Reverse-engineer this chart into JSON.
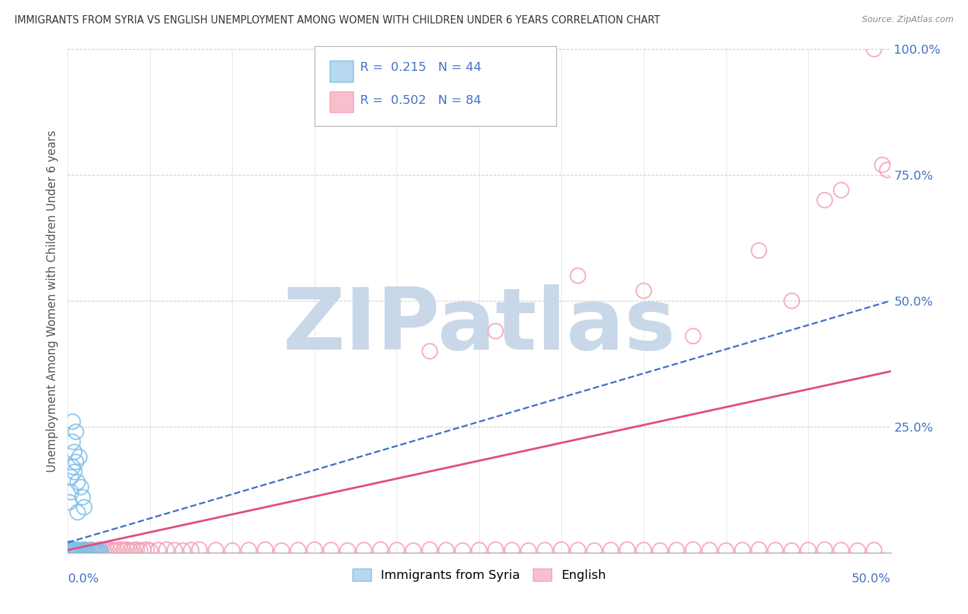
{
  "title": "IMMIGRANTS FROM SYRIA VS ENGLISH UNEMPLOYMENT AMONG WOMEN WITH CHILDREN UNDER 6 YEARS CORRELATION CHART",
  "source": "Source: ZipAtlas.com",
  "ylabel": "Unemployment Among Women with Children Under 6 years",
  "xlim": [
    0,
    0.5
  ],
  "ylim": [
    0,
    1.0
  ],
  "yticks": [
    0.0,
    0.25,
    0.5,
    0.75,
    1.0
  ],
  "ytick_labels": [
    "",
    "25.0%",
    "50.0%",
    "75.0%",
    "100.0%"
  ],
  "blue_color": "#7fbfea",
  "pink_color": "#f4a0b5",
  "blue_line_color": "#4472c4",
  "pink_line_color": "#e05080",
  "blue_trend": [
    0.0,
    0.02,
    0.5,
    0.5
  ],
  "pink_trend": [
    0.0,
    0.005,
    0.5,
    0.36
  ],
  "blue_scatter": [
    [
      0.001,
      0.005
    ],
    [
      0.001,
      0.008
    ],
    [
      0.002,
      0.003
    ],
    [
      0.002,
      0.006
    ],
    [
      0.003,
      0.004
    ],
    [
      0.003,
      0.007
    ],
    [
      0.004,
      0.005
    ],
    [
      0.004,
      0.003
    ],
    [
      0.005,
      0.006
    ],
    [
      0.005,
      0.004
    ],
    [
      0.006,
      0.003
    ],
    [
      0.006,
      0.005
    ],
    [
      0.007,
      0.004
    ],
    [
      0.007,
      0.002
    ],
    [
      0.008,
      0.003
    ],
    [
      0.009,
      0.005
    ],
    [
      0.01,
      0.004
    ],
    [
      0.01,
      0.006
    ],
    [
      0.011,
      0.003
    ],
    [
      0.012,
      0.004
    ],
    [
      0.013,
      0.002
    ],
    [
      0.014,
      0.003
    ],
    [
      0.015,
      0.004
    ],
    [
      0.016,
      0.002
    ],
    [
      0.017,
      0.003
    ],
    [
      0.018,
      0.002
    ],
    [
      0.019,
      0.003
    ],
    [
      0.02,
      0.002
    ],
    [
      0.003,
      0.17
    ],
    [
      0.004,
      0.2
    ],
    [
      0.005,
      0.18
    ],
    [
      0.003,
      0.22
    ],
    [
      0.004,
      0.16
    ],
    [
      0.006,
      0.14
    ],
    [
      0.007,
      0.19
    ],
    [
      0.005,
      0.24
    ],
    [
      0.002,
      0.15
    ],
    [
      0.008,
      0.13
    ],
    [
      0.002,
      0.12
    ],
    [
      0.001,
      0.1
    ],
    [
      0.009,
      0.11
    ],
    [
      0.01,
      0.09
    ],
    [
      0.003,
      0.26
    ],
    [
      0.006,
      0.08
    ]
  ],
  "pink_scatter": [
    [
      0.002,
      0.005
    ],
    [
      0.004,
      0.006
    ],
    [
      0.006,
      0.004
    ],
    [
      0.008,
      0.005
    ],
    [
      0.01,
      0.003
    ],
    [
      0.012,
      0.005
    ],
    [
      0.014,
      0.006
    ],
    [
      0.016,
      0.004
    ],
    [
      0.018,
      0.005
    ],
    [
      0.02,
      0.006
    ],
    [
      0.022,
      0.004
    ],
    [
      0.024,
      0.005
    ],
    [
      0.026,
      0.006
    ],
    [
      0.028,
      0.004
    ],
    [
      0.03,
      0.005
    ],
    [
      0.032,
      0.006
    ],
    [
      0.034,
      0.005
    ],
    [
      0.036,
      0.006
    ],
    [
      0.038,
      0.004
    ],
    [
      0.04,
      0.005
    ],
    [
      0.042,
      0.006
    ],
    [
      0.044,
      0.004
    ],
    [
      0.046,
      0.005
    ],
    [
      0.048,
      0.006
    ],
    [
      0.05,
      0.004
    ],
    [
      0.055,
      0.005
    ],
    [
      0.06,
      0.006
    ],
    [
      0.065,
      0.005
    ],
    [
      0.07,
      0.004
    ],
    [
      0.075,
      0.005
    ],
    [
      0.08,
      0.006
    ],
    [
      0.09,
      0.005
    ],
    [
      0.1,
      0.004
    ],
    [
      0.11,
      0.005
    ],
    [
      0.12,
      0.006
    ],
    [
      0.13,
      0.004
    ],
    [
      0.14,
      0.005
    ],
    [
      0.15,
      0.006
    ],
    [
      0.16,
      0.005
    ],
    [
      0.17,
      0.004
    ],
    [
      0.18,
      0.005
    ],
    [
      0.19,
      0.006
    ],
    [
      0.2,
      0.005
    ],
    [
      0.21,
      0.004
    ],
    [
      0.22,
      0.006
    ],
    [
      0.23,
      0.005
    ],
    [
      0.24,
      0.004
    ],
    [
      0.25,
      0.005
    ],
    [
      0.26,
      0.006
    ],
    [
      0.27,
      0.005
    ],
    [
      0.28,
      0.004
    ],
    [
      0.29,
      0.005
    ],
    [
      0.3,
      0.006
    ],
    [
      0.31,
      0.005
    ],
    [
      0.32,
      0.004
    ],
    [
      0.33,
      0.005
    ],
    [
      0.34,
      0.006
    ],
    [
      0.35,
      0.005
    ],
    [
      0.36,
      0.004
    ],
    [
      0.37,
      0.005
    ],
    [
      0.38,
      0.006
    ],
    [
      0.39,
      0.005
    ],
    [
      0.4,
      0.004
    ],
    [
      0.41,
      0.005
    ],
    [
      0.42,
      0.006
    ],
    [
      0.43,
      0.005
    ],
    [
      0.44,
      0.004
    ],
    [
      0.45,
      0.005
    ],
    [
      0.46,
      0.006
    ],
    [
      0.47,
      0.005
    ],
    [
      0.48,
      0.004
    ],
    [
      0.49,
      0.005
    ],
    [
      0.22,
      0.4
    ],
    [
      0.26,
      0.44
    ],
    [
      0.31,
      0.55
    ],
    [
      0.35,
      0.52
    ],
    [
      0.38,
      0.43
    ],
    [
      0.42,
      0.6
    ],
    [
      0.44,
      0.5
    ],
    [
      0.46,
      0.7
    ],
    [
      0.47,
      0.72
    ],
    [
      0.495,
      0.77
    ],
    [
      0.49,
      1.0
    ],
    [
      0.498,
      0.76
    ]
  ],
  "watermark": "ZIPatlas",
  "watermark_color": "#c8d8e8"
}
